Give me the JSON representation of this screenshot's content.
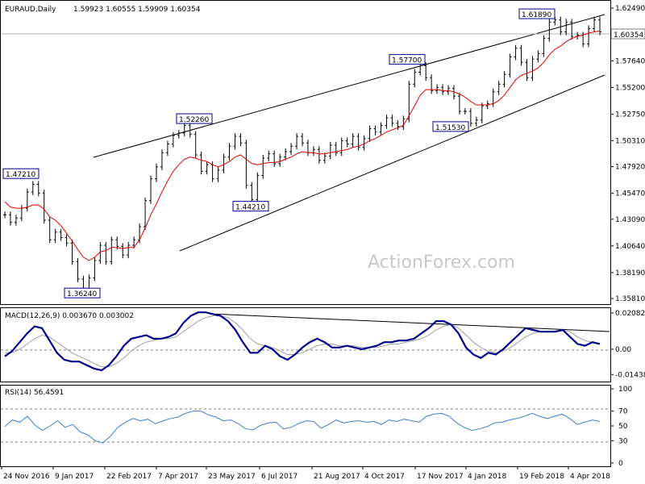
{
  "header": {
    "symbol": "EURAUD,Daily",
    "ohlc": "1.59923 1.60555 1.59909 1.60354"
  },
  "watermark": "ActionForex.com",
  "last_price_label": "1.60354",
  "colors": {
    "candle": "#000000",
    "ma": "#e00000",
    "macd": "#00008b",
    "signal": "#a0a0a0",
    "rsi": "#3f7fd0",
    "trendline": "#000000",
    "label_border": "#00008b"
  },
  "chart_data": [
    {
      "type": "line",
      "title": "EURAUD,Daily",
      "x_tick_labels": [
        "24 Nov 2016",
        "9 Jan 2017",
        "22 Feb 2017",
        "7 Apr 2017",
        "23 May 2017",
        "6 Jul 2017",
        "21 Aug 2017",
        "4 Oct 2017",
        "17 Nov 2017",
        "4 Jan 2018",
        "19 Feb 2018",
        "4 Apr 2018"
      ],
      "y_tick_labels": [
        "1.62490",
        "1.60354",
        "1.57640",
        "1.55200",
        "1.52750",
        "1.50310",
        "1.47920",
        "1.45470",
        "1.43090",
        "1.40640",
        "1.38190",
        "1.35810"
      ],
      "ylim": [
        1.3581,
        1.6249
      ],
      "grid": false,
      "price_annotations": [
        {
          "label": "1.47210",
          "value": 1.4721
        },
        {
          "label": "1.36240",
          "value": 1.3624
        },
        {
          "label": "1.52260",
          "value": 1.5226
        },
        {
          "label": "1.44210",
          "value": 1.4421
        },
        {
          "label": "1.57700",
          "value": 1.577
        },
        {
          "label": "1.51530",
          "value": 1.5153
        },
        {
          "label": "1.61890",
          "value": 1.6189
        }
      ],
      "series": [
        {
          "name": "",
          "values": [
            1.435,
            1.428,
            1.432,
            1.441,
            1.456,
            1.463,
            1.455,
            1.43,
            1.412,
            1.419,
            1.414,
            1.409,
            1.392,
            1.376,
            1.366,
            1.377,
            1.393,
            1.407,
            1.392,
            1.412,
            1.406,
            1.398,
            1.407,
            1.412,
            1.424,
            1.448,
            1.468,
            1.479,
            1.492,
            1.5,
            1.508,
            1.51,
            1.517,
            1.509,
            1.49,
            1.475,
            1.481,
            1.468,
            1.476,
            1.488,
            1.498,
            1.507,
            1.501,
            1.462,
            1.449,
            1.471,
            1.487,
            1.491,
            1.482,
            1.488,
            1.493,
            1.498,
            1.507,
            1.501,
            1.492,
            1.495,
            1.485,
            1.489,
            1.499,
            1.492,
            1.503,
            1.5,
            1.507,
            1.497,
            1.505,
            1.514,
            1.511,
            1.517,
            1.524,
            1.519,
            1.516,
            1.523,
            1.555,
            1.566,
            1.572,
            1.561,
            1.549,
            1.552,
            1.548,
            1.551,
            1.544,
            1.53,
            1.53,
            1.519,
            1.522,
            1.535,
            1.537,
            1.548,
            1.555,
            1.564,
            1.58,
            1.588,
            1.575,
            1.561,
            1.578,
            1.583,
            1.597,
            1.612,
            1.614,
            1.603,
            1.612,
            1.599,
            1.6,
            1.592,
            1.606,
            1.614,
            1.603
          ]
        },
        {
          "name": "",
          "values": [
            1.447,
            1.442,
            1.441,
            1.441,
            1.442,
            1.444,
            1.444,
            1.44,
            1.433,
            1.43,
            1.425,
            1.418,
            1.411,
            1.403,
            1.396,
            1.393,
            1.396,
            1.401,
            1.402,
            1.405,
            1.405,
            1.404,
            1.405,
            1.405,
            1.412,
            1.423,
            1.435,
            1.445,
            1.456,
            1.466,
            1.475,
            1.481,
            1.486,
            1.488,
            1.487,
            1.485,
            1.484,
            1.481,
            1.479,
            1.481,
            1.484,
            1.488,
            1.49,
            1.486,
            1.482,
            1.481,
            1.482,
            1.483,
            1.483,
            1.484,
            1.486,
            1.488,
            1.491,
            1.493,
            1.492,
            1.492,
            1.491,
            1.491,
            1.492,
            1.493,
            1.494,
            1.495,
            1.497,
            1.498,
            1.5,
            1.503,
            1.505,
            1.508,
            1.511,
            1.513,
            1.515,
            1.517,
            1.526,
            1.535,
            1.545,
            1.55,
            1.55,
            1.55,
            1.549,
            1.549,
            1.548,
            1.546,
            1.543,
            1.539,
            1.536,
            1.536,
            1.536,
            1.537,
            1.54,
            1.545,
            1.552,
            1.559,
            1.563,
            1.565,
            1.567,
            1.57,
            1.575,
            1.582,
            1.587,
            1.59,
            1.594,
            1.597,
            1.599,
            1.6,
            1.602,
            1.603,
            1.604
          ]
        }
      ]
    },
    {
      "type": "line",
      "title": "MACD(12,26,9) 0.003670 0.003002",
      "y_tick_labels": [
        "0.020827",
        "0.00",
        "-0.014386"
      ],
      "ylim": [
        -0.017,
        0.022
      ],
      "series": [
        {
          "name": "",
          "values": [
            -0.004,
            -0.001,
            0.004,
            0.009,
            0.013,
            0.012,
            0.005,
            -0.002,
            -0.006,
            -0.007,
            -0.007,
            -0.009,
            -0.011,
            -0.012,
            -0.009,
            -0.004,
            0.002,
            0.006,
            0.007,
            0.008,
            0.006,
            0.006,
            0.007,
            0.009,
            0.015,
            0.019,
            0.021,
            0.021,
            0.02,
            0.019,
            0.016,
            0.011,
            0.004,
            -0.002,
            -0.002,
            0.002,
            0.0,
            -0.004,
            -0.006,
            -0.003,
            0.001,
            0.004,
            0.006,
            0.004,
            0.001,
            0.001,
            0.002,
            0.001,
            0.0,
            0.001,
            0.002,
            0.004,
            0.004,
            0.005,
            0.005,
            0.006,
            0.009,
            0.012,
            0.016,
            0.016,
            0.014,
            0.009,
            0.001,
            -0.003,
            -0.005,
            -0.002,
            -0.003,
            0.0,
            0.004,
            0.008,
            0.012,
            0.011,
            0.01,
            0.01,
            0.01,
            0.011,
            0.007,
            0.003,
            0.002,
            0.004,
            0.003
          ]
        },
        {
          "name": "",
          "values": [
            -0.002,
            -0.002,
            0.0,
            0.003,
            0.006,
            0.008,
            0.007,
            0.004,
            0.001,
            -0.002,
            -0.004,
            -0.006,
            -0.008,
            -0.01,
            -0.01,
            -0.008,
            -0.005,
            -0.001,
            0.002,
            0.004,
            0.005,
            0.006,
            0.006,
            0.007,
            0.01,
            0.013,
            0.016,
            0.018,
            0.019,
            0.019,
            0.018,
            0.015,
            0.011,
            0.006,
            0.003,
            0.002,
            0.001,
            -0.001,
            -0.003,
            -0.003,
            -0.002,
            0.0,
            0.002,
            0.003,
            0.003,
            0.002,
            0.002,
            0.002,
            0.001,
            0.001,
            0.001,
            0.002,
            0.003,
            0.003,
            0.004,
            0.005,
            0.006,
            0.008,
            0.011,
            0.013,
            0.014,
            0.012,
            0.008,
            0.004,
            0.001,
            -0.001,
            -0.002,
            -0.001,
            0.001,
            0.004,
            0.007,
            0.009,
            0.01,
            0.01,
            0.01,
            0.011,
            0.01,
            0.007,
            0.005,
            0.004,
            0.003
          ]
        }
      ]
    },
    {
      "type": "line",
      "title": "RSI(14) 56.4591",
      "y_tick_labels": [
        "100",
        "70",
        "50",
        "30",
        "0"
      ],
      "ylim": [
        0,
        100
      ],
      "series": [
        {
          "name": "",
          "values": [
            49,
            58,
            55,
            63,
            51,
            44,
            50,
            57,
            48,
            52,
            42,
            38,
            30,
            27,
            36,
            48,
            55,
            60,
            57,
            59,
            53,
            57,
            60,
            62,
            67,
            70,
            70,
            65,
            62,
            57,
            58,
            53,
            46,
            45,
            51,
            54,
            55,
            46,
            48,
            53,
            57,
            56,
            47,
            52,
            58,
            54,
            56,
            57,
            55,
            56,
            52,
            58,
            56,
            59,
            57,
            55,
            63,
            66,
            67,
            63,
            54,
            48,
            44,
            46,
            49,
            54,
            55,
            58,
            60,
            63,
            67,
            63,
            60,
            63,
            66,
            60,
            52,
            55,
            58,
            56
          ]
        }
      ]
    }
  ]
}
